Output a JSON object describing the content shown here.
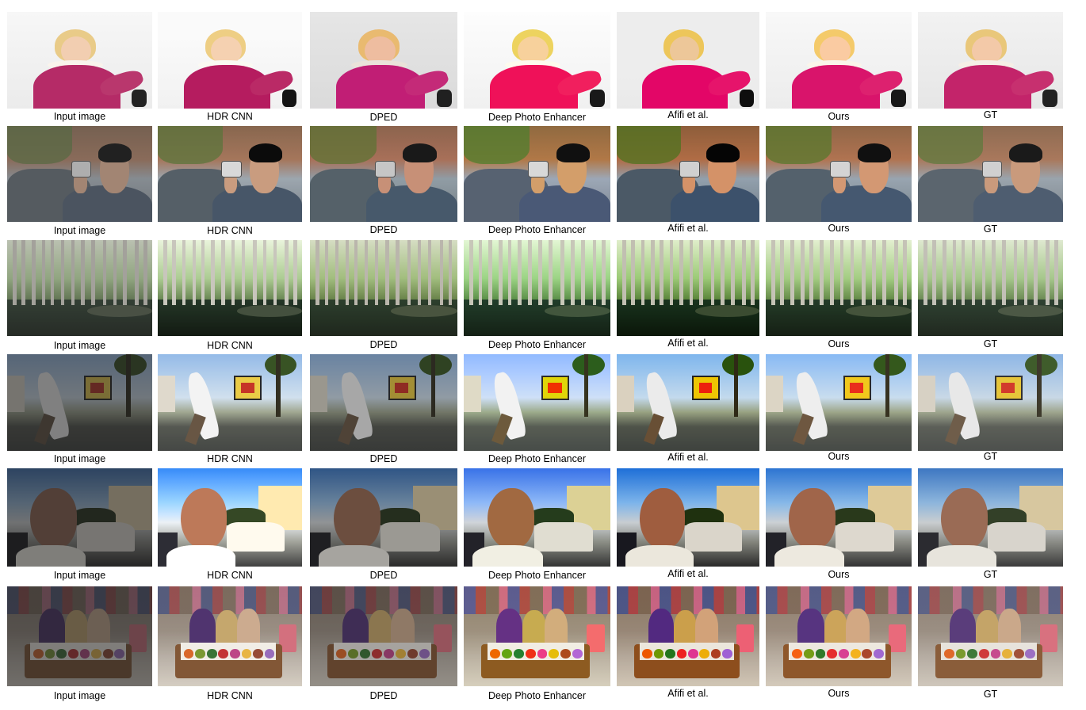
{
  "methods": [
    {
      "key": "input",
      "label": "Input image"
    },
    {
      "key": "hdr",
      "label": "HDR CNN"
    },
    {
      "key": "dped",
      "label": "DPED"
    },
    {
      "key": "dpe",
      "label": "Deep Photo Enhancer"
    },
    {
      "key": "afifi",
      "label": "Afifi et al."
    },
    {
      "key": "ours",
      "label": "Ours"
    },
    {
      "key": "gt",
      "label": "GT"
    }
  ],
  "scenes": [
    {
      "name": "girl-in-snow"
    },
    {
      "name": "man-with-camera"
    },
    {
      "name": "swamp-forest"
    },
    {
      "name": "man-at-billboard"
    },
    {
      "name": "man-profile-backlit"
    },
    {
      "name": "market-stall"
    }
  ]
}
